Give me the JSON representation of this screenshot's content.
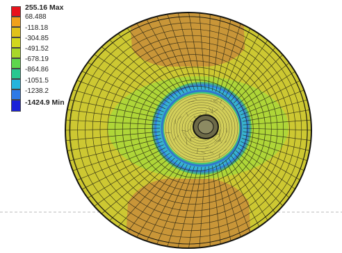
{
  "legend": {
    "labels": [
      "255.16 Max",
      "68.488",
      "-118.18",
      "-304.85",
      "-491.52",
      "-678.19",
      "-864.86",
      "-1051.5",
      "-1238.2",
      "-1424.9 Min"
    ],
    "max_value": "255.16",
    "max_suffix": "Max",
    "min_value": "-1424.9",
    "min_suffix": "Min",
    "colors": [
      "#e8121c",
      "#f0a11c",
      "#e0c21a",
      "#d2d81e",
      "#a8d82a",
      "#5ed64c",
      "#28c890",
      "#26b4dc",
      "#2e7ae6",
      "#1a20d8"
    ]
  },
  "plot": {
    "colors": {
      "disk_base": "#cdc832",
      "orange_regions": "#c99638",
      "ring_green": "#4cc84a",
      "ring_cyan": "#3ab2d2",
      "ring_blue": "#2e7ae6",
      "mesh_lines": "#1a1a10",
      "dashed_line": "#b9b9b9"
    }
  }
}
